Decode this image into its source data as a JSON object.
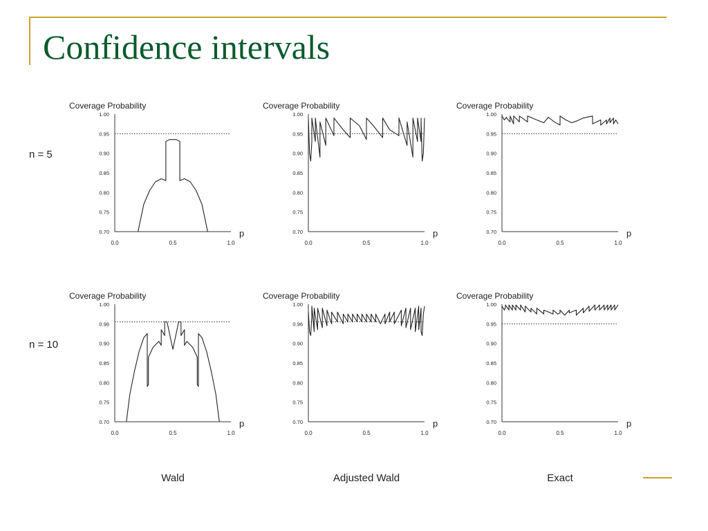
{
  "slide": {
    "title": "Confidence intervals",
    "row_labels": [
      "n = 5",
      "n = 10"
    ],
    "method_labels": [
      "Wald",
      "Adjusted Wald",
      "Exact"
    ],
    "accent": "#c9a227",
    "title_color": "#0b5a2e"
  },
  "chart_data": [
    {
      "type": "line",
      "title": "Coverage Probability",
      "row": "n = 5",
      "method": "Wald",
      "xlabel": "p",
      "xlim": [
        0,
        1
      ],
      "ylim": [
        0.7,
        1.0
      ],
      "xticks": [
        "0.0",
        "0.5",
        "1.0"
      ],
      "yticks": [
        "1.00",
        "0.95",
        "0.90",
        "0.85",
        "0.80",
        "0.75",
        "0.70"
      ],
      "reference_line": 0.95,
      "series": [
        {
          "x": [
            0.2,
            0.25,
            0.3,
            0.35,
            0.4,
            0.44,
            0.44,
            0.47,
            0.5,
            0.53,
            0.56,
            0.56,
            0.6,
            0.65,
            0.7,
            0.75,
            0.8
          ],
          "y": [
            0.7,
            0.77,
            0.805,
            0.827,
            0.835,
            0.83,
            0.93,
            0.935,
            0.935,
            0.935,
            0.93,
            0.83,
            0.835,
            0.827,
            0.805,
            0.77,
            0.7
          ]
        }
      ]
    },
    {
      "type": "line",
      "title": "Coverage Probability",
      "row": "n = 5",
      "method": "Adjusted Wald",
      "xlabel": "p",
      "xlim": [
        0,
        1
      ],
      "ylim": [
        0.7,
        1.0
      ],
      "xticks": [
        "0.0",
        "0.5",
        "1.0"
      ],
      "yticks": [
        "1.00",
        "0.95",
        "0.90",
        "0.85",
        "0.80",
        "0.75",
        "0.70"
      ],
      "reference_line": 0.95,
      "series": [
        {
          "x": [
            0.0,
            0.01,
            0.02,
            0.03,
            0.03,
            0.06,
            0.06,
            0.1,
            0.1,
            0.15,
            0.15,
            0.22,
            0.22,
            0.3,
            0.36,
            0.36,
            0.44,
            0.5,
            0.5,
            0.56,
            0.64,
            0.64,
            0.7,
            0.78,
            0.78,
            0.85,
            0.85,
            0.9,
            0.9,
            0.94,
            0.94,
            0.97,
            0.97,
            0.98,
            0.99,
            1.0
          ],
          "y": [
            0.99,
            0.9,
            0.88,
            0.93,
            0.99,
            0.93,
            0.99,
            0.89,
            0.98,
            0.92,
            0.99,
            0.945,
            0.99,
            0.96,
            0.94,
            0.99,
            0.97,
            0.935,
            0.99,
            0.97,
            0.94,
            0.99,
            0.96,
            0.945,
            0.99,
            0.92,
            0.98,
            0.89,
            0.99,
            0.93,
            0.99,
            0.93,
            0.99,
            0.88,
            0.9,
            0.99
          ]
        }
      ]
    },
    {
      "type": "line",
      "title": "Coverage Probability",
      "row": "n = 5",
      "method": "Exact",
      "xlabel": "p",
      "xlim": [
        0,
        1
      ],
      "ylim": [
        0.7,
        1.0
      ],
      "xticks": [
        "0.0",
        "0.5",
        "1.0"
      ],
      "yticks": [
        "1.00",
        "0.95",
        "0.90",
        "0.85",
        "0.80",
        "0.75",
        "0.70"
      ],
      "reference_line": 0.95,
      "series": [
        {
          "x": [
            0.0,
            0.02,
            0.04,
            0.04,
            0.07,
            0.07,
            0.1,
            0.1,
            0.15,
            0.15,
            0.22,
            0.22,
            0.3,
            0.36,
            0.4,
            0.45,
            0.5,
            0.5,
            0.55,
            0.6,
            0.64,
            0.7,
            0.78,
            0.78,
            0.85,
            0.85,
            0.9,
            0.9,
            0.93,
            0.93,
            0.96,
            0.96,
            0.98,
            1.0
          ],
          "y": [
            0.995,
            0.985,
            0.992,
            0.99,
            0.98,
            0.995,
            0.975,
            0.995,
            0.98,
            0.995,
            0.98,
            0.995,
            0.985,
            0.978,
            0.992,
            0.98,
            0.972,
            0.995,
            0.985,
            0.978,
            0.982,
            0.99,
            0.995,
            0.975,
            0.985,
            0.972,
            0.985,
            0.975,
            0.99,
            0.978,
            0.99,
            0.975,
            0.985,
            0.975
          ]
        }
      ]
    },
    {
      "type": "line",
      "title": "Coverage Probability",
      "row": "n = 10",
      "method": "Wald",
      "xlabel": "p",
      "xlim": [
        0,
        1
      ],
      "ylim": [
        0.7,
        1.0
      ],
      "xticks": [
        "0.0",
        "0.5",
        "1.0"
      ],
      "yticks": [
        "1.00",
        "0.96",
        "0.90",
        "0.85",
        "0.80",
        "0.75",
        "0.70"
      ],
      "reference_line": 0.955,
      "series": [
        {
          "x": [
            0.1,
            0.13,
            0.17,
            0.21,
            0.25,
            0.28,
            0.28,
            0.29,
            0.29,
            0.33,
            0.38,
            0.4,
            0.4,
            0.43,
            0.43,
            0.45,
            0.5,
            0.55,
            0.57,
            0.57,
            0.6,
            0.6,
            0.62,
            0.67,
            0.71,
            0.71,
            0.72,
            0.72,
            0.75,
            0.79,
            0.83,
            0.87,
            0.9
          ],
          "y": [
            0.7,
            0.77,
            0.83,
            0.88,
            0.915,
            0.925,
            0.79,
            0.795,
            0.865,
            0.89,
            0.905,
            0.895,
            0.935,
            0.92,
            0.955,
            0.955,
            0.885,
            0.955,
            0.955,
            0.92,
            0.935,
            0.895,
            0.905,
            0.89,
            0.865,
            0.795,
            0.79,
            0.925,
            0.915,
            0.88,
            0.83,
            0.77,
            0.7
          ]
        }
      ]
    },
    {
      "type": "line",
      "title": "Coverage Probability",
      "row": "n = 10",
      "method": "Adjusted Wald",
      "xlabel": "p",
      "xlim": [
        0,
        1
      ],
      "ylim": [
        0.7,
        1.0
      ],
      "xticks": [
        "0.0",
        "0.5",
        "1.0"
      ],
      "yticks": [
        "1.00",
        "0.96",
        "0.90",
        "0.85",
        "0.80",
        "0.75",
        "0.70"
      ],
      "reference_line": 0.955,
      "series": [
        {
          "x": [
            0.0,
            0.01,
            0.02,
            0.03,
            0.03,
            0.05,
            0.05,
            0.08,
            0.08,
            0.12,
            0.12,
            0.16,
            0.16,
            0.2,
            0.2,
            0.25,
            0.25,
            0.3,
            0.3,
            0.34,
            0.34,
            0.38,
            0.38,
            0.42,
            0.42,
            0.46,
            0.46,
            0.5,
            0.5,
            0.54,
            0.54,
            0.58,
            0.58,
            0.62,
            0.66,
            0.66,
            0.7,
            0.7,
            0.74,
            0.74,
            0.8,
            0.8,
            0.84,
            0.84,
            0.88,
            0.88,
            0.92,
            0.92,
            0.95,
            0.95,
            0.97,
            0.97,
            0.98,
            0.99,
            1.0
          ],
          "y": [
            0.98,
            0.93,
            0.92,
            0.97,
            0.995,
            0.93,
            0.99,
            0.935,
            0.99,
            0.94,
            0.99,
            0.945,
            0.985,
            0.95,
            0.98,
            0.955,
            0.98,
            0.95,
            0.975,
            0.955,
            0.975,
            0.955,
            0.975,
            0.955,
            0.975,
            0.955,
            0.975,
            0.955,
            0.975,
            0.955,
            0.975,
            0.955,
            0.975,
            0.95,
            0.975,
            0.95,
            0.98,
            0.955,
            0.98,
            0.95,
            0.985,
            0.945,
            0.99,
            0.94,
            0.99,
            0.935,
            0.99,
            0.93,
            0.995,
            0.935,
            0.99,
            0.93,
            0.92,
            0.975,
            0.995
          ]
        }
      ]
    },
    {
      "type": "line",
      "title": "Coverage Probability",
      "row": "n = 10",
      "method": "Exact",
      "xlabel": "p",
      "xlim": [
        0,
        1
      ],
      "ylim": [
        0.7,
        1.0
      ],
      "xticks": [
        "0.0",
        "0.5",
        "1.0"
      ],
      "yticks": [
        "1.00",
        "0.95",
        "0.90",
        "0.85",
        "0.80",
        "0.75",
        "0.70"
      ],
      "reference_line": 0.95,
      "series": [
        {
          "x": [
            0.0,
            0.02,
            0.03,
            0.03,
            0.06,
            0.06,
            0.09,
            0.09,
            0.12,
            0.12,
            0.16,
            0.16,
            0.2,
            0.2,
            0.25,
            0.25,
            0.3,
            0.3,
            0.36,
            0.36,
            0.4,
            0.44,
            0.44,
            0.48,
            0.5,
            0.5,
            0.54,
            0.58,
            0.58,
            0.64,
            0.64,
            0.7,
            0.7,
            0.75,
            0.75,
            0.8,
            0.8,
            0.84,
            0.84,
            0.88,
            0.88,
            0.91,
            0.91,
            0.94,
            0.94,
            0.97,
            0.97,
            1.0
          ],
          "y": [
            0.995,
            0.985,
            0.992,
            0.998,
            0.985,
            0.998,
            0.985,
            0.998,
            0.985,
            0.998,
            0.985,
            0.998,
            0.98,
            0.995,
            0.98,
            0.99,
            0.975,
            0.99,
            0.975,
            0.985,
            0.98,
            0.975,
            0.985,
            0.975,
            0.978,
            0.985,
            0.972,
            0.985,
            0.978,
            0.985,
            0.972,
            0.99,
            0.978,
            0.995,
            0.982,
            0.998,
            0.985,
            0.998,
            0.985,
            0.998,
            0.985,
            0.998,
            0.985,
            0.998,
            0.985,
            0.998,
            0.985,
            0.998
          ]
        }
      ]
    }
  ]
}
